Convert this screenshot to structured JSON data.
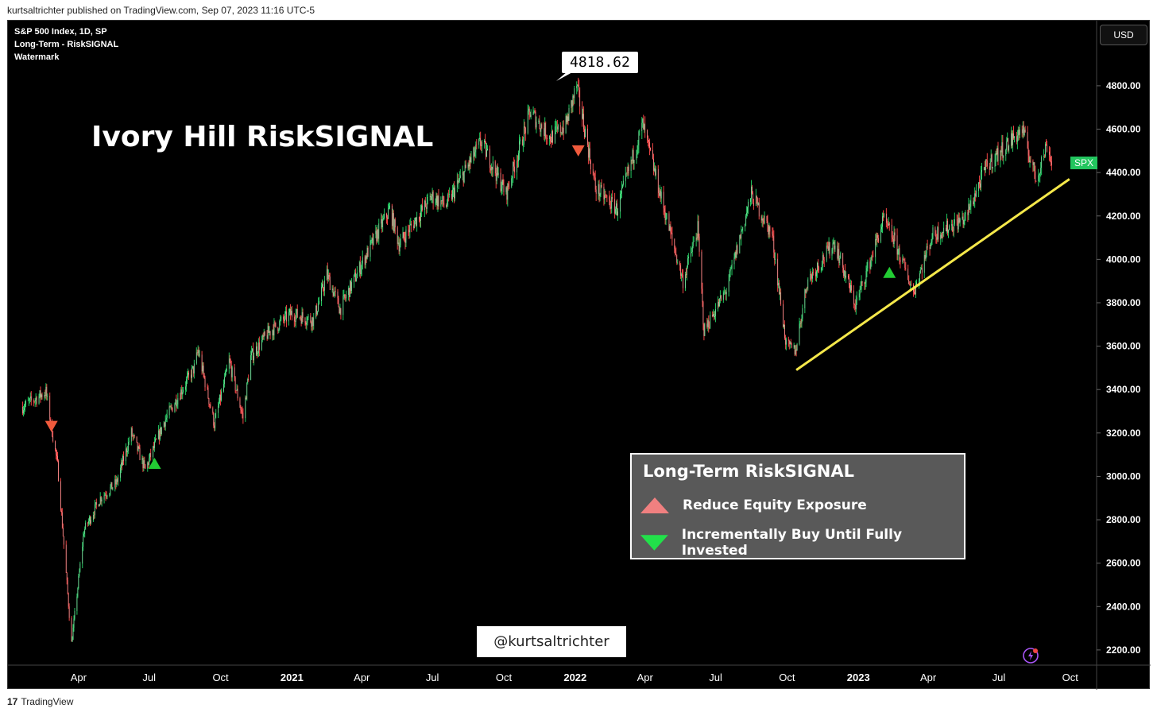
{
  "header": {
    "text": "kurtsaltrichter published on TradingView.com, Sep 07, 2023 11:16 UTC-5"
  },
  "footer": {
    "logo": "17",
    "brand": "TradingView"
  },
  "chart_info": {
    "line1": "S&P 500 Index, 1D, SP",
    "line2": "Long-Term - RiskSIGNAL",
    "line3": "Watermark"
  },
  "title": "Ivory Hill RiskSIGNAL",
  "currency": "USD",
  "ticker_badge": "SPX",
  "ath_label": "4818.62",
  "handle": "@kurtsaltrichter",
  "legend": {
    "title": "Long-Term RiskSIGNAL",
    "items": [
      {
        "label": "Reduce Equity Exposure",
        "color": "#f08080",
        "shape": "triangle-up"
      },
      {
        "label": "Incrementally Buy Until Fully Invested",
        "color": "#22e04a",
        "shape": "triangle-down"
      }
    ]
  },
  "colors": {
    "background": "#000000",
    "candle_up": "#22c55e",
    "candle_down": "#ef4444",
    "trendline": "#f5e84a",
    "signal_sell": "#f05a3c",
    "signal_buy": "#22cc33",
    "axis_text": "#ffffff"
  },
  "chart_data": {
    "type": "line",
    "title": "Ivory Hill RiskSIGNAL",
    "xlabel": "",
    "ylabel": "",
    "ylim": [
      2130,
      5100
    ],
    "y_ticks": [
      2200,
      2400,
      2600,
      2800,
      3000,
      3200,
      3400,
      3600,
      3800,
      4000,
      4200,
      4400,
      4600,
      4800
    ],
    "y_tick_labels": [
      "2200.00",
      "2400.00",
      "2600.00",
      "2800.00",
      "3000.00",
      "3200.00",
      "3400.00",
      "3600.00",
      "3800.00",
      "4000.00",
      "4200.00",
      "4400.00",
      "4600.00",
      "4800.00"
    ],
    "x_ticks": [
      "2020-04-01",
      "2020-07-01",
      "2020-10-01",
      "2021-01-01",
      "2021-04-01",
      "2021-07-01",
      "2021-10-01",
      "2022-01-01",
      "2022-04-01",
      "2022-07-01",
      "2022-10-01",
      "2023-01-01",
      "2023-04-01",
      "2023-07-01",
      "2023-10-01"
    ],
    "x_tick_labels": [
      "Apr",
      "Jul",
      "Oct",
      "2021",
      "Apr",
      "Jul",
      "Oct",
      "2022",
      "Apr",
      "Jul",
      "Oct",
      "2023",
      "Apr",
      "Jul",
      "Oct"
    ],
    "x_tick_bold": [
      false,
      false,
      false,
      true,
      false,
      false,
      false,
      true,
      false,
      false,
      false,
      true,
      false,
      false,
      false
    ],
    "series": [
      {
        "name": "SPX",
        "x": [
          "2020-01-20",
          "2020-02-19",
          "2020-03-05",
          "2020-03-23",
          "2020-04-08",
          "2020-04-29",
          "2020-05-20",
          "2020-06-08",
          "2020-06-26",
          "2020-07-20",
          "2020-08-28",
          "2020-09-02",
          "2020-09-23",
          "2020-10-12",
          "2020-10-30",
          "2020-11-09",
          "2020-12-01",
          "2020-12-31",
          "2021-01-29",
          "2021-02-15",
          "2021-03-04",
          "2021-04-01",
          "2021-05-07",
          "2021-05-19",
          "2021-06-30",
          "2021-07-19",
          "2021-08-31",
          "2021-09-02",
          "2021-10-04",
          "2021-11-04",
          "2021-11-30",
          "2021-12-20",
          "2022-01-03",
          "2022-01-27",
          "2022-02-24",
          "2022-03-29",
          "2022-04-22",
          "2022-05-20",
          "2022-06-08",
          "2022-06-16",
          "2022-07-15",
          "2022-08-16",
          "2022-09-12",
          "2022-09-30",
          "2022-10-12",
          "2022-10-27",
          "2022-12-01",
          "2022-12-28",
          "2023-01-17",
          "2023-02-02",
          "2023-02-16",
          "2023-03-13",
          "2023-04-06",
          "2023-05-19",
          "2023-06-15",
          "2023-07-31",
          "2023-08-18",
          "2023-09-01",
          "2023-09-07"
        ],
        "y": [
          3320,
          3390,
          3050,
          2230,
          2750,
          2900,
          2970,
          3200,
          3030,
          3250,
          3500,
          3580,
          3240,
          3530,
          3270,
          3550,
          3660,
          3750,
          3720,
          3930,
          3770,
          3980,
          4230,
          4070,
          4290,
          4250,
          4530,
          4540,
          4300,
          4680,
          4560,
          4620,
          4800,
          4330,
          4230,
          4620,
          4280,
          3900,
          4140,
          3670,
          3860,
          4300,
          4110,
          3600,
          3580,
          3900,
          4080,
          3790,
          4000,
          4180,
          4090,
          3850,
          4110,
          4190,
          4430,
          4600,
          4370,
          4530,
          4450
        ]
      }
    ],
    "trendline": {
      "x": [
        "2022-10-13",
        "2023-09-30"
      ],
      "y": [
        3490,
        4370
      ]
    },
    "annotations": [
      {
        "type": "signal-sell",
        "x": "2020-02-26",
        "y": 3230
      },
      {
        "type": "signal-buy",
        "x": "2020-07-08",
        "y": 3060
      },
      {
        "type": "signal-sell",
        "x": "2022-01-05",
        "y": 4500
      },
      {
        "type": "signal-buy",
        "x": "2023-02-10",
        "y": 3940
      },
      {
        "type": "ath",
        "x": "2022-01-03",
        "y": 4818.62
      }
    ]
  }
}
